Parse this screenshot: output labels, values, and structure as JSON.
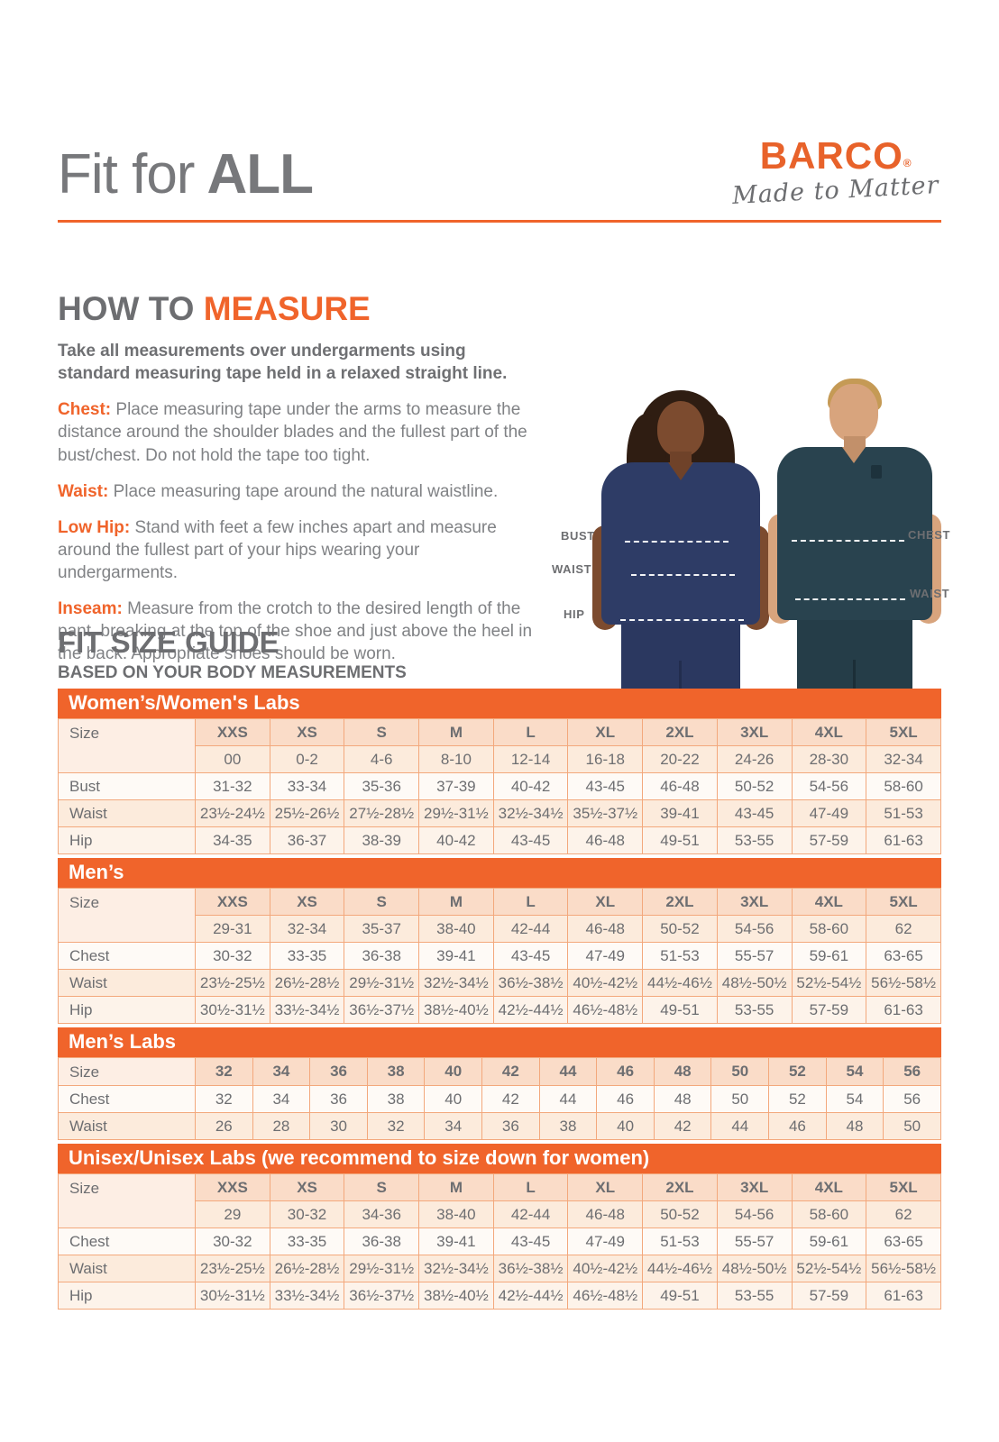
{
  "colors": {
    "accent_orange": "#F0642B",
    "brand_orange": "#E8622A",
    "heading_gray": "#6D6E71",
    "body_gray": "#808285",
    "table_border": "#F3A87C",
    "peach_dark": "#FADCC8",
    "peach_light": "#FCEBDC",
    "woman_scrub_navy": "#2E3C66",
    "man_scrub_teal": "#29434F"
  },
  "header": {
    "title_regular": "Fit for",
    "title_bold": "ALL",
    "brand": "BARCO",
    "brand_reg": "®",
    "tagline": "Made to Matter"
  },
  "measure": {
    "title_gray": "HOW TO",
    "title_orange": "MEASURE",
    "intro": "Take all measurements over undergarments using standard measuring tape held in a relaxed straight line.",
    "items": [
      {
        "label": "Chest:",
        "text": "Place measuring tape under the arms to measure the distance around the shoulder blades and the fullest part of the bust/chest. Do not hold the tape too tight."
      },
      {
        "label": "Waist:",
        "text": "Place measuring tape around the natural waistline."
      },
      {
        "label": "Low Hip:",
        "text": "Stand with feet a few inches apart and measure around the fullest part of your hips wearing your undergarments."
      },
      {
        "label": "Inseam:",
        "text": "Measure from the crotch to the desired length of the pant, breaking at the top of the shoe and just above the heel in the back. Appropriate shoes should be worn."
      }
    ]
  },
  "figure": {
    "labels": {
      "bust": "BUST",
      "waist_left": "WAIST",
      "hip": "HIP",
      "chest": "CHEST",
      "waist_right": "WAIST"
    }
  },
  "size_guide": {
    "title": "FIT SIZE GUIDE",
    "subtitle": "BASED ON YOUR BODY MEASUREMENTS",
    "size_label": "Size",
    "tables": [
      {
        "title": "Women’s/Women's Labs",
        "sizes": [
          "XXS",
          "XS",
          "S",
          "M",
          "L",
          "XL",
          "2XL",
          "3XL",
          "4XL",
          "5XL"
        ],
        "numeric": [
          "00",
          "0-2",
          "4-6",
          "8-10",
          "12-14",
          "16-18",
          "20-22",
          "24-26",
          "28-30",
          "32-34"
        ],
        "rows": [
          {
            "label": "Bust",
            "values": [
              "31-32",
              "33-34",
              "35-36",
              "37-39",
              "40-42",
              "43-45",
              "46-48",
              "50-52",
              "54-56",
              "58-60"
            ]
          },
          {
            "label": "Waist",
            "values": [
              "23½-24½",
              "25½-26½",
              "27½-28½",
              "29½-31½",
              "32½-34½",
              "35½-37½",
              "39-41",
              "43-45",
              "47-49",
              "51-53"
            ]
          },
          {
            "label": "Hip",
            "values": [
              "34-35",
              "36-37",
              "38-39",
              "40-42",
              "43-45",
              "46-48",
              "49-51",
              "53-55",
              "57-59",
              "61-63"
            ]
          }
        ]
      },
      {
        "title": "Men’s",
        "sizes": [
          "XXS",
          "XS",
          "S",
          "M",
          "L",
          "XL",
          "2XL",
          "3XL",
          "4XL",
          "5XL"
        ],
        "numeric": [
          "29-31",
          "32-34",
          "35-37",
          "38-40",
          "42-44",
          "46-48",
          "50-52",
          "54-56",
          "58-60",
          "62"
        ],
        "rows": [
          {
            "label": "Chest",
            "values": [
              "30-32",
              "33-35",
              "36-38",
              "39-41",
              "43-45",
              "47-49",
              "51-53",
              "55-57",
              "59-61",
              "63-65"
            ]
          },
          {
            "label": "Waist",
            "values": [
              "23½-25½",
              "26½-28½",
              "29½-31½",
              "32½-34½",
              "36½-38½",
              "40½-42½",
              "44½-46½",
              "48½-50½",
              "52½-54½",
              "56½-58½"
            ]
          },
          {
            "label": "Hip",
            "values": [
              "30½-31½",
              "33½-34½",
              "36½-37½",
              "38½-40½",
              "42½-44½",
              "46½-48½",
              "49-51",
              "53-55",
              "57-59",
              "61-63"
            ]
          }
        ]
      },
      {
        "title": "Men’s Labs",
        "sizes": [
          "32",
          "34",
          "36",
          "38",
          "40",
          "42",
          "44",
          "46",
          "48",
          "50",
          "52",
          "54",
          "56"
        ],
        "rows": [
          {
            "label": "Chest",
            "values": [
              "32",
              "34",
              "36",
              "38",
              "40",
              "42",
              "44",
              "46",
              "48",
              "50",
              "52",
              "54",
              "56"
            ]
          },
          {
            "label": "Waist",
            "values": [
              "26",
              "28",
              "30",
              "32",
              "34",
              "36",
              "38",
              "40",
              "42",
              "44",
              "46",
              "48",
              "50"
            ]
          }
        ]
      },
      {
        "title": "Unisex/Unisex Labs (we recommend to size down for women)",
        "sizes": [
          "XXS",
          "XS",
          "S",
          "M",
          "L",
          "XL",
          "2XL",
          "3XL",
          "4XL",
          "5XL"
        ],
        "numeric": [
          "29",
          "30-32",
          "34-36",
          "38-40",
          "42-44",
          "46-48",
          "50-52",
          "54-56",
          "58-60",
          "62"
        ],
        "rows": [
          {
            "label": "Chest",
            "values": [
              "30-32",
              "33-35",
              "36-38",
              "39-41",
              "43-45",
              "47-49",
              "51-53",
              "55-57",
              "59-61",
              "63-65"
            ]
          },
          {
            "label": "Waist",
            "values": [
              "23½-25½",
              "26½-28½",
              "29½-31½",
              "32½-34½",
              "36½-38½",
              "40½-42½",
              "44½-46½",
              "48½-50½",
              "52½-54½",
              "56½-58½"
            ]
          },
          {
            "label": "Hip",
            "values": [
              "30½-31½",
              "33½-34½",
              "36½-37½",
              "38½-40½",
              "42½-44½",
              "46½-48½",
              "49-51",
              "53-55",
              "57-59",
              "61-63"
            ]
          }
        ]
      }
    ]
  }
}
